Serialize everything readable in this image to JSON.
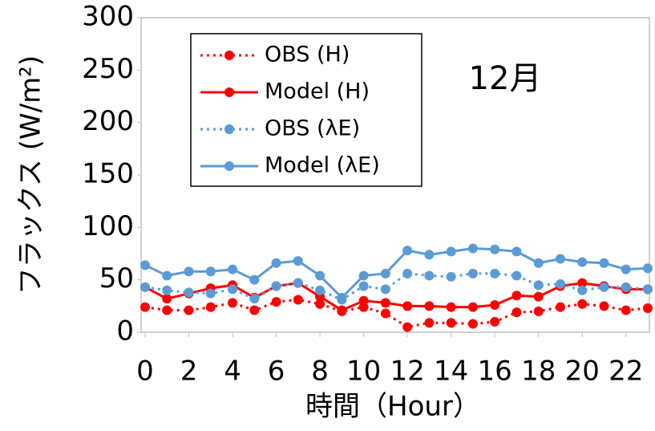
{
  "chart_data": {
    "type": "line",
    "x": [
      0,
      1,
      2,
      3,
      4,
      5,
      6,
      7,
      8,
      9,
      10,
      11,
      12,
      13,
      14,
      15,
      16,
      17,
      18,
      19,
      20,
      21,
      22,
      23
    ],
    "xlabel": "時間（Hour）",
    "ylabel": "フラックス (W/m²)",
    "annotation": "12月",
    "xlim": [
      0,
      23
    ],
    "xticks": [
      0,
      2,
      4,
      6,
      8,
      10,
      12,
      14,
      16,
      18,
      20,
      22
    ],
    "ylim": [
      0,
      300
    ],
    "yticks": [
      0,
      50,
      100,
      150,
      200,
      250,
      300
    ],
    "legend": "upper left",
    "series": [
      {
        "name": "OBS (H)",
        "color": "#ff0000",
        "style": "dotted",
        "values": [
          24,
          21,
          21,
          24,
          28,
          21,
          29,
          31,
          27,
          20,
          24,
          18,
          5,
          9,
          9,
          8,
          10,
          19,
          20,
          24,
          27,
          25,
          21,
          23
        ]
      },
      {
        "name": "Model (H)",
        "color": "#ff0000",
        "style": "solid",
        "values": [
          43,
          32,
          37,
          42,
          45,
          33,
          44,
          47,
          34,
          21,
          30,
          28,
          25,
          25,
          24,
          24,
          26,
          35,
          34,
          44,
          47,
          44,
          41,
          41
        ]
      },
      {
        "name": "OBS (λE)",
        "color": "#5b9bd5",
        "style": "dotted",
        "values": [
          43,
          40,
          38,
          37,
          41,
          32,
          44,
          47,
          40,
          31,
          44,
          41,
          56,
          54,
          53,
          56,
          56,
          54,
          45,
          46,
          40,
          43,
          43,
          41
        ]
      },
      {
        "name": "Model (λE)",
        "color": "#5b9bd5",
        "style": "solid",
        "values": [
          64,
          54,
          58,
          58,
          60,
          50,
          66,
          68,
          54,
          33,
          54,
          56,
          78,
          74,
          77,
          80,
          79,
          77,
          66,
          70,
          67,
          66,
          60,
          61
        ]
      }
    ]
  }
}
